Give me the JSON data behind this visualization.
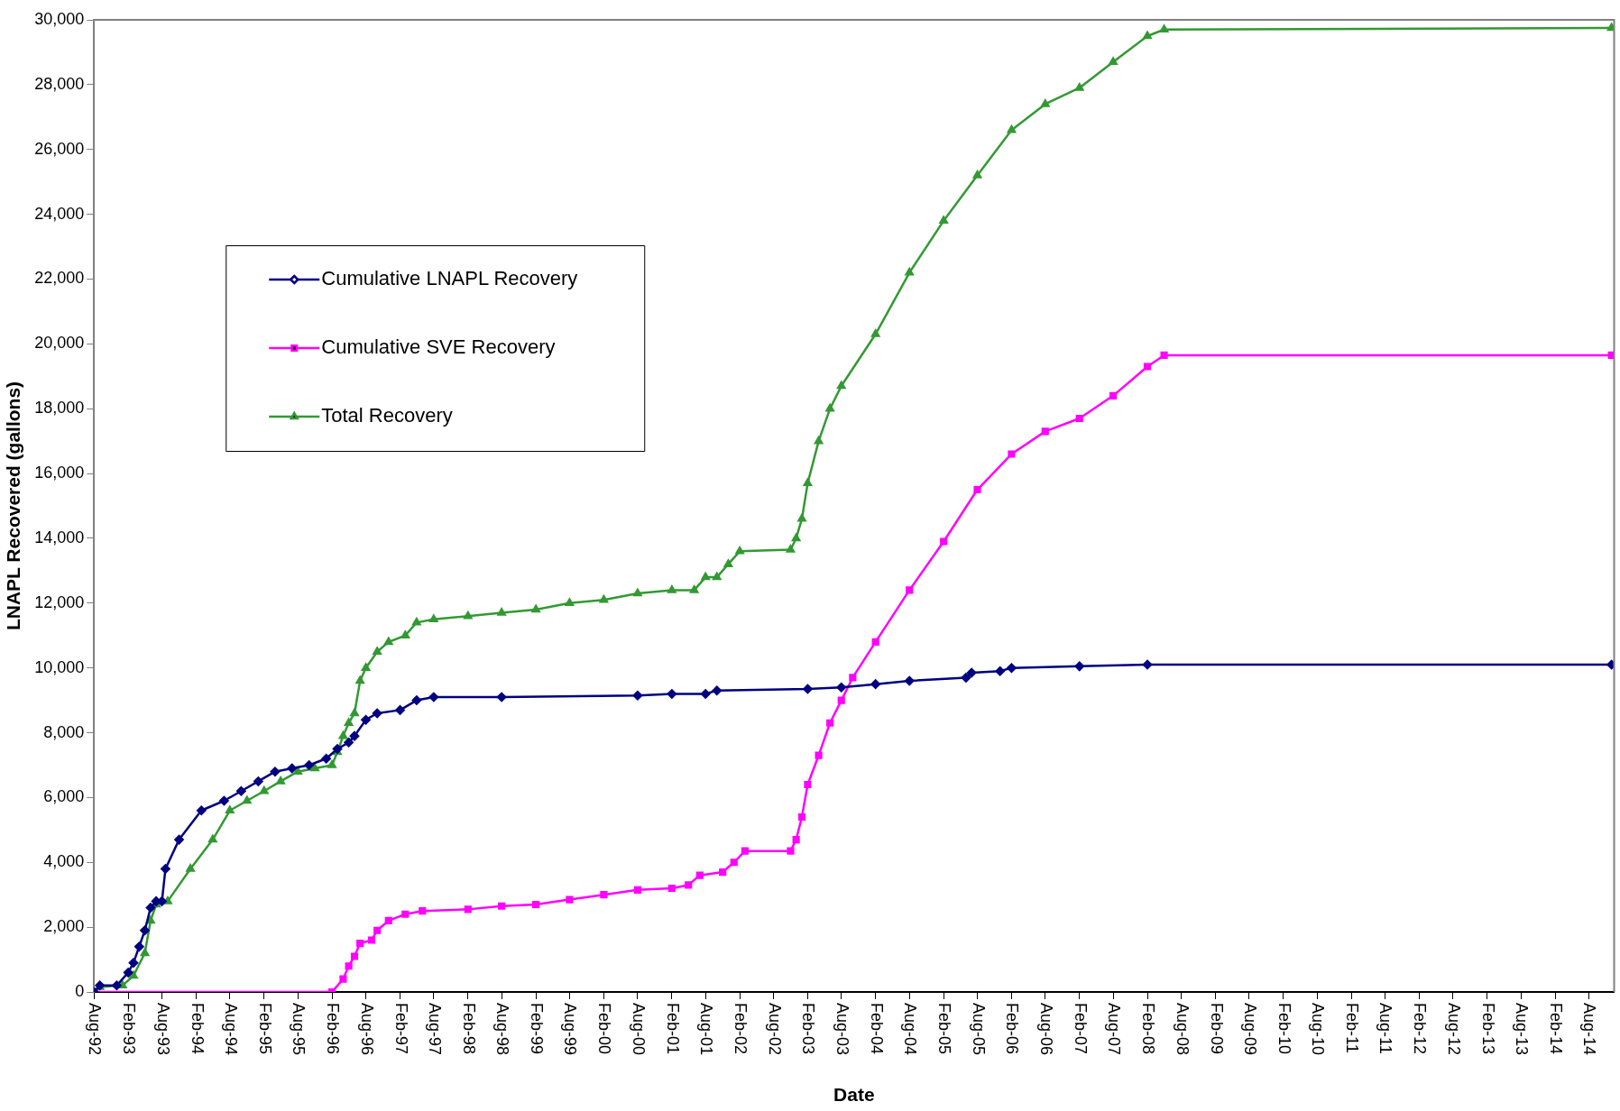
{
  "chart_data": {
    "type": "line",
    "xlabel": "Date",
    "ylabel": "LNAPL Recovered (gallons)",
    "legend": "top left",
    "xlim": [
      "1992-08",
      "2014-12-15"
    ],
    "ylim": [
      0,
      30000
    ],
    "yticks": [
      0,
      {
        "value": 2000,
        "label": "2,000"
      },
      {
        "value": 4000,
        "label": "4,000"
      },
      {
        "value": 6000,
        "label": "6,000"
      },
      {
        "value": 8000,
        "label": "8,000"
      },
      {
        "value": 10000,
        "label": "10,000"
      },
      {
        "value": 12000,
        "label": "12,000"
      },
      {
        "value": 14000,
        "label": "14,000"
      },
      {
        "value": 16000,
        "label": "16,000"
      },
      {
        "value": 18000,
        "label": "18,000"
      },
      {
        "value": 20000,
        "label": "20,000"
      },
      {
        "value": 22000,
        "label": "22,000"
      },
      {
        "value": 24000,
        "label": "24,000"
      },
      {
        "value": 26000,
        "label": "26,000"
      },
      {
        "value": 28000,
        "label": "28,000"
      },
      {
        "value": 30000,
        "label": "30,000"
      }
    ],
    "xticks": [
      {
        "value": "1992-08",
        "label": "Aug-92"
      },
      {
        "value": "1993-02",
        "label": "Feb-93"
      },
      {
        "value": "1993-08",
        "label": "Aug-93"
      },
      {
        "value": "1994-02",
        "label": "Feb-94"
      },
      {
        "value": "1994-08",
        "label": "Aug-94"
      },
      {
        "value": "1995-02",
        "label": "Feb-95"
      },
      {
        "value": "1995-08",
        "label": "Aug-95"
      },
      {
        "value": "1996-02",
        "label": "Feb-96"
      },
      {
        "value": "1996-08",
        "label": "Aug-96"
      },
      {
        "value": "1997-02",
        "label": "Feb-97"
      },
      {
        "value": "1997-08",
        "label": "Aug-97"
      },
      {
        "value": "1998-02",
        "label": "Feb-98"
      },
      {
        "value": "1998-08",
        "label": "Aug-98"
      },
      {
        "value": "1999-02",
        "label": "Feb-99"
      },
      {
        "value": "1999-08",
        "label": "Aug-99"
      },
      {
        "value": "2000-02",
        "label": "Feb-00"
      },
      {
        "value": "2000-08",
        "label": "Aug-00"
      },
      {
        "value": "2001-02",
        "label": "Feb-01"
      },
      {
        "value": "2001-08",
        "label": "Aug-01"
      },
      {
        "value": "2002-02",
        "label": "Feb-02"
      },
      {
        "value": "2002-08",
        "label": "Aug-02"
      },
      {
        "value": "2003-02",
        "label": "Feb-03"
      },
      {
        "value": "2003-08",
        "label": "Aug-03"
      },
      {
        "value": "2004-02",
        "label": "Feb-04"
      },
      {
        "value": "2004-08",
        "label": "Aug-04"
      },
      {
        "value": "2005-02",
        "label": "Feb-05"
      },
      {
        "value": "2005-08",
        "label": "Aug-05"
      },
      {
        "value": "2006-02",
        "label": "Feb-06"
      },
      {
        "value": "2006-08",
        "label": "Aug-06"
      },
      {
        "value": "2007-02",
        "label": "Feb-07"
      },
      {
        "value": "2007-08",
        "label": "Aug-07"
      },
      {
        "value": "2008-02",
        "label": "Feb-08"
      },
      {
        "value": "2008-08",
        "label": "Aug-08"
      },
      {
        "value": "2009-02",
        "label": "Feb-09"
      },
      {
        "value": "2009-08",
        "label": "Aug-09"
      },
      {
        "value": "2010-02",
        "label": "Feb-10"
      },
      {
        "value": "2010-08",
        "label": "Aug-10"
      },
      {
        "value": "2011-02",
        "label": "Feb-11"
      },
      {
        "value": "2011-08",
        "label": "Aug-11"
      },
      {
        "value": "2012-02",
        "label": "Feb-12"
      },
      {
        "value": "2012-08",
        "label": "Aug-12"
      },
      {
        "value": "2013-02",
        "label": "Feb-13"
      },
      {
        "value": "2013-08",
        "label": "Aug-13"
      },
      {
        "value": "2014-02",
        "label": "Feb-14"
      },
      {
        "value": "2014-08",
        "label": "Aug-14"
      }
    ],
    "series": [
      {
        "name": "Cumulative LNAPL Recovery",
        "color": "#000080",
        "marker": "diamond",
        "x": [
          "1992-08",
          "1992-09",
          "1992-12",
          "1993-02",
          "1993-03",
          "1993-04",
          "1993-05",
          "1993-06",
          "1993-07",
          "1993-08",
          "1993-08-20",
          "1993-11",
          "1994-03",
          "1994-07",
          "1994-10",
          "1995-01",
          "1995-04",
          "1995-07",
          "1995-10",
          "1996-01",
          "1996-03",
          "1996-05",
          "1996-06",
          "1996-08",
          "1996-10",
          "1997-02",
          "1997-05",
          "1997-08",
          "1998-08",
          "2000-08",
          "2001-02",
          "2001-08",
          "2001-10",
          "2003-02",
          "2003-08",
          "2004-02",
          "2004-08",
          "2005-06",
          "2005-07",
          "2005-12",
          "2006-02",
          "2007-02",
          "2008-02",
          "2014-12"
        ],
        "values": [
          0,
          200,
          200,
          600,
          900,
          1400,
          1900,
          2600,
          2800,
          2800,
          3800,
          4700,
          5600,
          5900,
          6200,
          6500,
          6800,
          6900,
          7000,
          7200,
          7500,
          7700,
          7900,
          8400,
          8600,
          8700,
          9000,
          9100,
          9100,
          9150,
          9200,
          9200,
          9300,
          9350,
          9400,
          9500,
          9600,
          9700,
          9850,
          9900,
          10000,
          10050,
          10100,
          10100
        ]
      },
      {
        "name": "Cumulative SVE Recovery",
        "color": "#ff00ff",
        "marker": "square",
        "x": [
          "1992-08",
          "1996-02",
          "1996-04",
          "1996-05",
          "1996-06",
          "1996-07",
          "1996-09",
          "1996-10",
          "1996-12",
          "1997-03",
          "1997-06",
          "1998-02",
          "1998-08",
          "1999-02",
          "1999-08",
          "2000-02",
          "2000-08",
          "2001-02",
          "2001-05",
          "2001-07",
          "2001-11",
          "2002-01",
          "2002-03",
          "2002-11",
          "2002-12",
          "2003-01",
          "2003-02",
          "2003-04",
          "2003-06",
          "2003-08",
          "2003-10",
          "2004-02",
          "2004-08",
          "2005-02",
          "2005-08",
          "2006-02",
          "2006-08",
          "2007-02",
          "2007-08",
          "2008-02",
          "2008-05",
          "2014-12"
        ],
        "values": [
          0,
          0,
          400,
          800,
          1100,
          1500,
          1600,
          1900,
          2200,
          2400,
          2500,
          2550,
          2650,
          2700,
          2850,
          3000,
          3150,
          3200,
          3300,
          3600,
          3700,
          4000,
          4350,
          4350,
          4700,
          5400,
          6400,
          7300,
          8300,
          9000,
          9700,
          10800,
          12400,
          13900,
          15500,
          16600,
          17300,
          17700,
          18400,
          19300,
          19650,
          19650
        ]
      },
      {
        "name": "Total Recovery",
        "color": "#339933",
        "marker": "triangle",
        "x": [
          "1992-08",
          "1992-09",
          "1993-01",
          "1993-03",
          "1993-05",
          "1993-06",
          "1993-07",
          "1993-09",
          "1994-01",
          "1994-05",
          "1994-08",
          "1994-11",
          "1995-02",
          "1995-05",
          "1995-08",
          "1995-11",
          "1996-02",
          "1996-03",
          "1996-04",
          "1996-05",
          "1996-06",
          "1996-07",
          "1996-08",
          "1996-10",
          "1996-12",
          "1997-03",
          "1997-05",
          "1997-08",
          "1998-02",
          "1998-08",
          "1999-02",
          "1999-08",
          "2000-02",
          "2000-08",
          "2001-02",
          "2001-06",
          "2001-08",
          "2001-10",
          "2001-12",
          "2002-02",
          "2002-11",
          "2002-12",
          "2003-01",
          "2003-02",
          "2003-04",
          "2003-06",
          "2003-08",
          "2004-02",
          "2004-08",
          "2005-02",
          "2005-08",
          "2006-02",
          "2006-08",
          "2007-02",
          "2007-08",
          "2008-02",
          "2008-05",
          "2014-12"
        ],
        "values": [
          0,
          150,
          200,
          500,
          1200,
          2200,
          2700,
          2800,
          3800,
          4700,
          5600,
          5900,
          6200,
          6500,
          6800,
          6900,
          7000,
          7400,
          7900,
          8300,
          8600,
          9600,
          10000,
          10500,
          10800,
          11000,
          11400,
          11500,
          11600,
          11700,
          11800,
          12000,
          12100,
          12300,
          12400,
          12400,
          12800,
          12800,
          13200,
          13600,
          13650,
          14000,
          14600,
          15700,
          17000,
          18000,
          18700,
          20300,
          22200,
          23800,
          25200,
          26600,
          27400,
          27900,
          28700,
          29500,
          29700,
          29750
        ]
      }
    ]
  }
}
